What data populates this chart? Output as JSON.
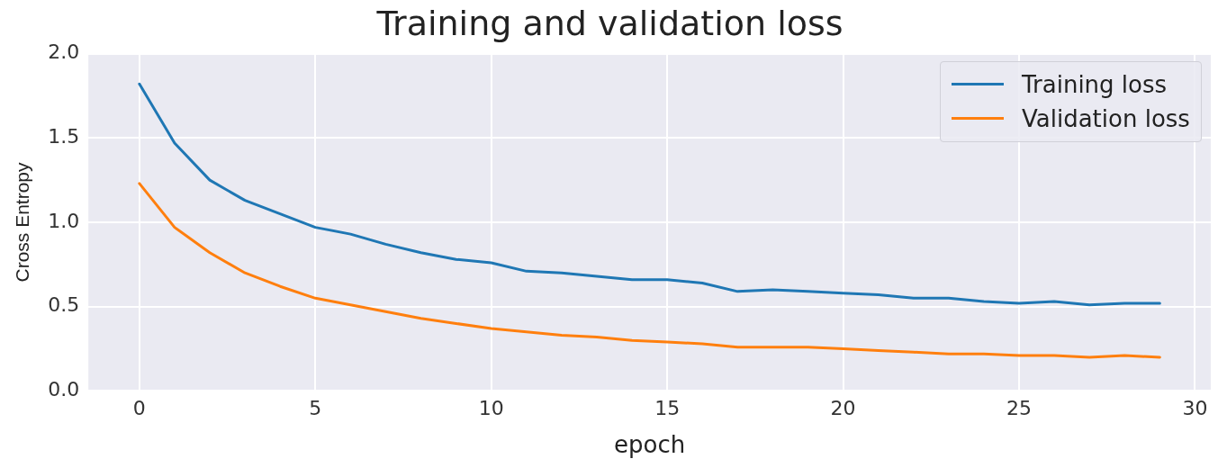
{
  "chart_data": {
    "type": "line",
    "title": "Training and validation loss",
    "xlabel": "epoch",
    "ylabel": "Cross Entropy",
    "x": [
      0,
      1,
      2,
      3,
      4,
      5,
      6,
      7,
      8,
      9,
      10,
      11,
      12,
      13,
      14,
      15,
      16,
      17,
      18,
      19,
      20,
      21,
      22,
      23,
      24,
      25,
      26,
      27,
      28,
      29
    ],
    "series": [
      {
        "name": "Training loss",
        "color": "#1f77b4",
        "values": [
          1.82,
          1.47,
          1.25,
          1.13,
          1.05,
          0.97,
          0.93,
          0.87,
          0.82,
          0.78,
          0.76,
          0.71,
          0.7,
          0.68,
          0.66,
          0.66,
          0.64,
          0.59,
          0.6,
          0.59,
          0.58,
          0.57,
          0.55,
          0.55,
          0.53,
          0.52,
          0.53,
          0.51,
          0.52,
          0.52
        ]
      },
      {
        "name": "Validation loss",
        "color": "#ff7f0e",
        "values": [
          1.23,
          0.97,
          0.82,
          0.7,
          0.62,
          0.55,
          0.51,
          0.47,
          0.43,
          0.4,
          0.37,
          0.35,
          0.33,
          0.32,
          0.3,
          0.29,
          0.28,
          0.26,
          0.26,
          0.26,
          0.25,
          0.24,
          0.23,
          0.22,
          0.22,
          0.21,
          0.21,
          0.2,
          0.21,
          0.2
        ]
      }
    ],
    "xlim": [
      -1.45,
      30.45
    ],
    "xticks": [
      0,
      5,
      10,
      15,
      20,
      25,
      30
    ],
    "ylim": [
      0,
      2
    ],
    "yticks": [
      {
        "value": 0,
        "label": "0.0"
      },
      0.5,
      {
        "value": 1,
        "label": "1.0"
      },
      1.5,
      {
        "value": 2,
        "label": "2.0"
      }
    ],
    "grid": true,
    "legend": "top right",
    "marker": "none",
    "line_style": "solid"
  }
}
